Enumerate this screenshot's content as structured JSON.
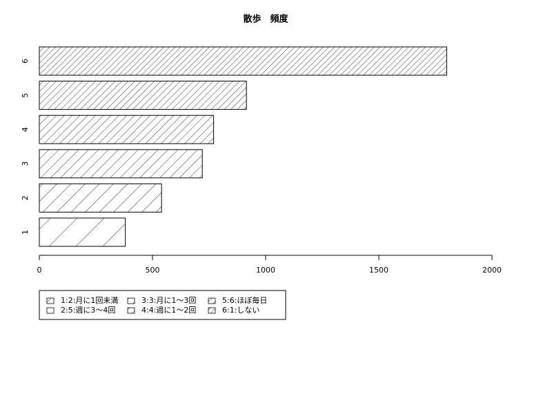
{
  "chart_data": {
    "type": "hbar",
    "title": "散歩　頻度",
    "categories": [
      "1",
      "2",
      "3",
      "4",
      "5",
      "6"
    ],
    "values": [
      380,
      540,
      720,
      770,
      915,
      1800
    ],
    "color": "#000000",
    "xlim": [
      0,
      2000
    ],
    "xticks": [
      0,
      500,
      1000,
      1500,
      2000
    ],
    "legend": [
      "1:2:月に1回未満",
      "2:5:週に3〜4回",
      "3:3:月に1〜3回",
      "4:4:週に1〜2回",
      "5:6:ほぼ毎日",
      "6:1:しない"
    ]
  }
}
